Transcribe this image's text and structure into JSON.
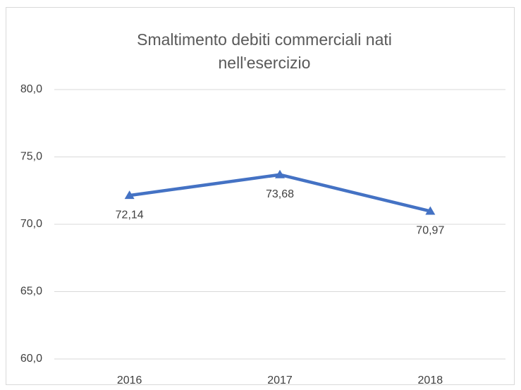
{
  "chart_data": {
    "type": "line",
    "title": "Smaltimento debiti commerciali nati nell'esercizio",
    "categories": [
      "2016",
      "2017",
      "2018"
    ],
    "values": [
      72.14,
      73.68,
      70.97
    ],
    "value_labels": [
      "72,14",
      "73,68",
      "70,97"
    ],
    "color": "#4472c4",
    "marker": "triangle",
    "ylim": [
      60,
      80
    ],
    "yticks": [
      {
        "value": 60,
        "label": "60,0"
      },
      {
        "value": 65,
        "label": "65,0"
      },
      {
        "value": 70,
        "label": "70,0"
      },
      {
        "value": 75,
        "label": "75,0"
      },
      {
        "value": 80,
        "label": "80,0"
      }
    ],
    "grid": true
  }
}
